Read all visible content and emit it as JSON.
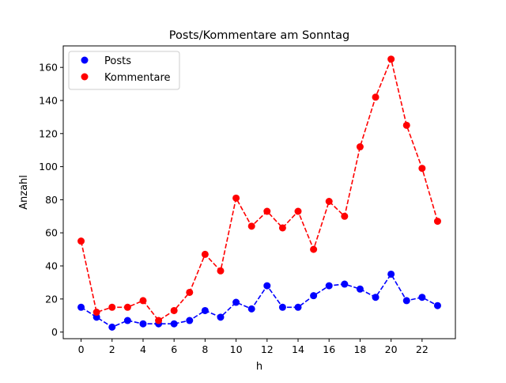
{
  "chart_data": {
    "type": "line",
    "title": "Posts/Kommentare am Sonntag",
    "xlabel": "h",
    "ylabel": "Anzahl",
    "x": [
      0,
      1,
      2,
      3,
      4,
      5,
      6,
      7,
      8,
      9,
      10,
      11,
      12,
      13,
      14,
      15,
      16,
      17,
      18,
      19,
      20,
      21,
      22,
      23
    ],
    "xlim": [
      -1.15,
      24.15
    ],
    "ylim": [
      -4,
      173
    ],
    "xticks": [
      0,
      2,
      4,
      6,
      8,
      10,
      12,
      14,
      16,
      18,
      20,
      22
    ],
    "yticks": [
      0,
      20,
      40,
      60,
      80,
      100,
      120,
      140,
      160
    ],
    "grid": false,
    "legend_position": "top-left",
    "series": [
      {
        "name": "Posts",
        "color": "#0000ff",
        "line_style": "dashed",
        "marker": "circle",
        "values": [
          15,
          9,
          3,
          7,
          5,
          5,
          5,
          7,
          13,
          9,
          18,
          14,
          28,
          15,
          15,
          22,
          28,
          29,
          26,
          21,
          35,
          19,
          21,
          16
        ]
      },
      {
        "name": "Kommentare",
        "color": "#ff0000",
        "line_style": "dashed",
        "marker": "circle",
        "values": [
          55,
          12,
          15,
          15,
          19,
          7,
          13,
          24,
          47,
          37,
          81,
          64,
          73,
          63,
          73,
          50,
          79,
          70,
          112,
          142,
          165,
          125,
          99,
          67
        ]
      }
    ]
  }
}
